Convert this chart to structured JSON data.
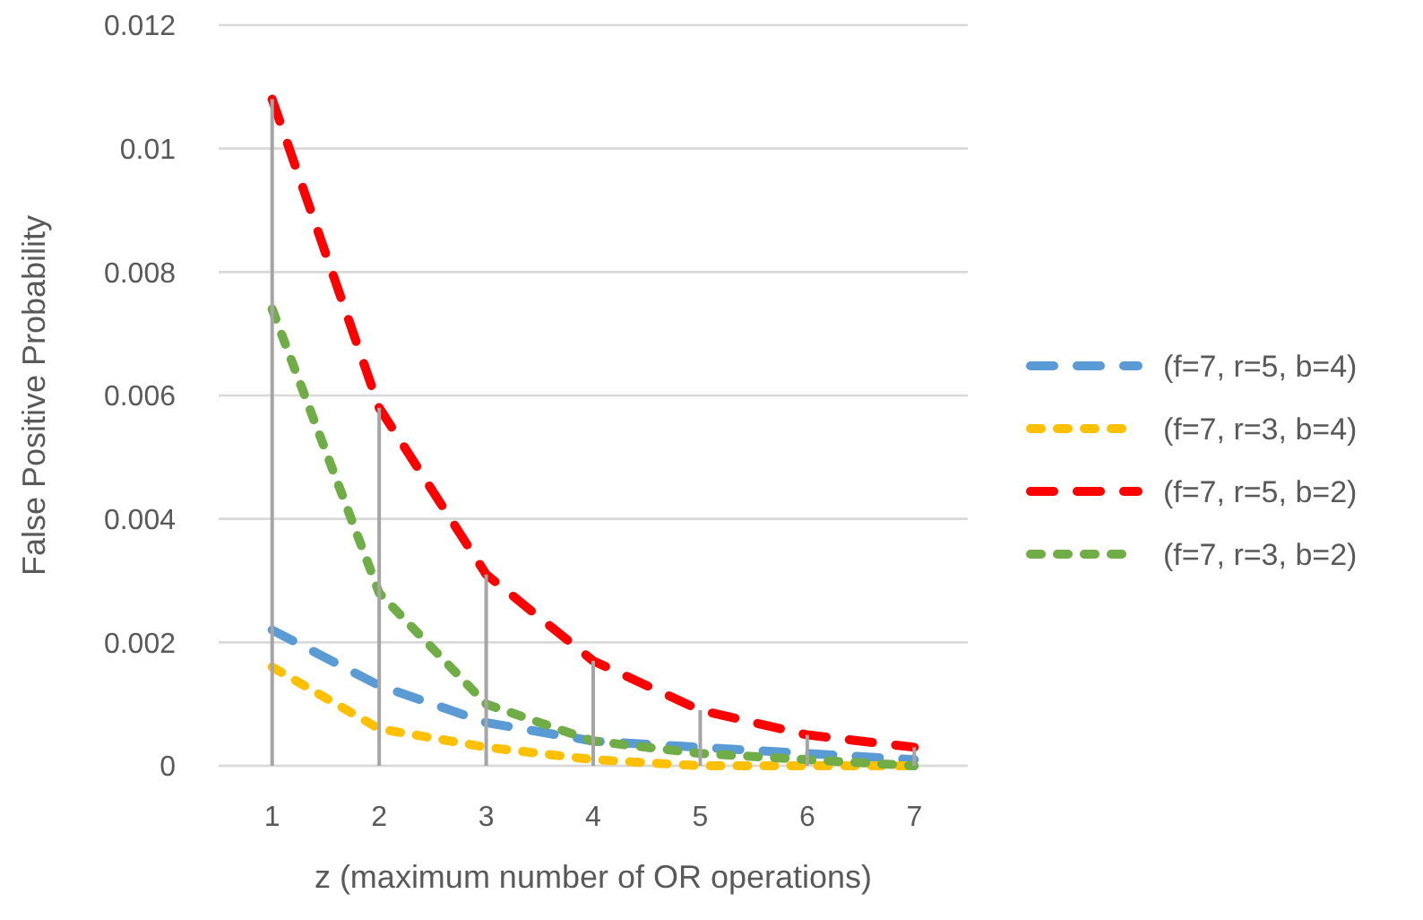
{
  "chart_data": {
    "type": "line",
    "xlabel": "z (maximum number of OR operations)",
    "ylabel": "False Positive Probability",
    "categories": [
      "1",
      "2",
      "3",
      "4",
      "5",
      "6",
      "7"
    ],
    "ylim": [
      0,
      0.012
    ],
    "yticks": [
      {
        "value": 0,
        "label": "0"
      },
      0.002,
      0.004,
      0.006,
      0.008,
      0.01,
      0.012
    ],
    "grid": "y",
    "legend": "right",
    "line_style": "dashed",
    "series": [
      {
        "name": "(f=7, r=5, b=4)",
        "color": "#5b9bd5",
        "values": [
          0.0022,
          0.0013,
          0.0007,
          0.0004,
          0.0003,
          0.0002,
          0.0001
        ]
      },
      {
        "name": "(f=7, r=3, b=4)",
        "color": "#ffc000",
        "values": [
          0.0016,
          0.0006,
          0.0003,
          0.0001,
          0,
          0,
          0
        ]
      },
      {
        "name": "(f=7, r=5, b=2)",
        "color": "#ff0000",
        "values": [
          0.0108,
          0.0058,
          0.0031,
          0.0017,
          0.0009,
          0.0005,
          0.0003
        ]
      },
      {
        "name": "(f=7, r=3, b=2)",
        "color": "#70ad47",
        "values": [
          0.0074,
          0.0028,
          0.001,
          0.0004,
          0.0002,
          0.0001,
          0
        ]
      },
      {
        "type": "bar",
        "color": "#a5a5a5",
        "values": [
          0.0108,
          0.0058,
          0.0031,
          0.0017,
          0.0009,
          0.0005,
          0.0003
        ]
      }
    ]
  }
}
